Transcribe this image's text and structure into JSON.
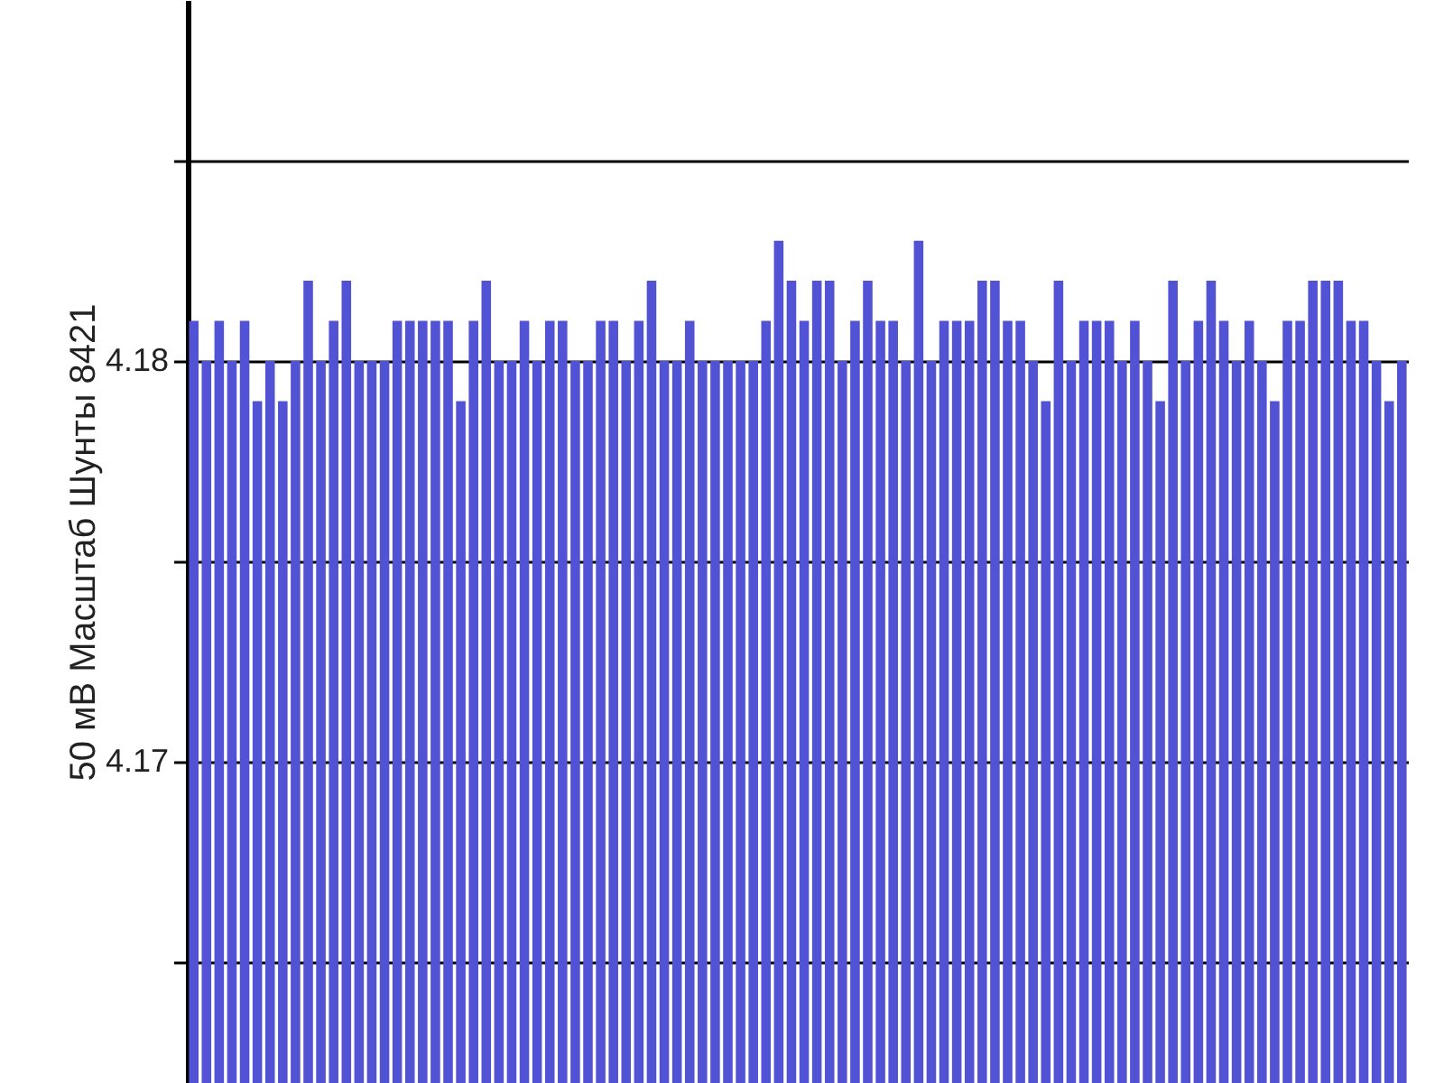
{
  "chart_data": {
    "type": "bar",
    "ylabel": "50 мВ Масштаб  Шунты 8421",
    "categories": [
      null,
      null,
      null,
      null,
      null,
      null,
      null,
      null,
      null,
      null,
      null,
      null,
      null,
      null,
      null,
      null,
      null,
      null,
      null,
      null,
      null,
      null,
      null,
      null,
      null,
      null,
      null,
      null,
      null,
      null,
      null,
      null,
      null,
      null,
      null,
      null,
      null,
      null,
      null,
      null,
      null,
      null,
      null,
      null,
      null,
      null,
      null,
      null,
      null,
      null,
      null,
      null,
      null,
      null,
      null,
      null,
      null,
      null,
      null,
      null,
      null,
      null,
      null,
      null,
      null,
      null,
      null,
      null,
      null,
      null,
      null,
      null,
      null,
      null,
      null,
      null,
      null,
      null,
      null,
      null,
      null,
      null,
      null,
      null,
      null,
      null,
      null,
      null,
      null,
      null,
      null,
      null,
      null,
      null,
      null,
      null
    ],
    "values": [
      4.181,
      4.18,
      4.181,
      4.18,
      4.181,
      4.179,
      4.18,
      4.179,
      4.18,
      4.182,
      4.18,
      4.181,
      4.182,
      4.18,
      4.18,
      4.18,
      4.181,
      4.181,
      4.181,
      4.181,
      4.181,
      4.179,
      4.181,
      4.182,
      4.18,
      4.18,
      4.181,
      4.18,
      4.181,
      4.181,
      4.18,
      4.18,
      4.181,
      4.181,
      4.18,
      4.181,
      4.182,
      4.18,
      4.18,
      4.181,
      4.18,
      4.18,
      4.18,
      4.18,
      4.18,
      4.181,
      4.183,
      4.182,
      4.181,
      4.182,
      4.182,
      4.18,
      4.181,
      4.182,
      4.181,
      4.181,
      4.18,
      4.183,
      4.18,
      4.181,
      4.181,
      4.181,
      4.182,
      4.182,
      4.181,
      4.181,
      4.18,
      4.179,
      4.182,
      4.18,
      4.181,
      4.181,
      4.181,
      4.18,
      4.181,
      4.18,
      4.179,
      4.182,
      4.18,
      4.181,
      4.182,
      4.181,
      4.18,
      4.181,
      4.18,
      4.179,
      4.181,
      4.181,
      4.182,
      4.182,
      4.182,
      4.181,
      4.181,
      4.18,
      4.179,
      4.18
    ],
    "color": "#5252d4",
    "ylim": [
      4.162,
      4.189
    ],
    "yticks": [
      {
        "value": 4.165,
        "label": null
      },
      4.17,
      {
        "value": 4.175,
        "label": null
      },
      4.18,
      {
        "value": 4.185,
        "label": null
      }
    ],
    "grid": "y"
  }
}
